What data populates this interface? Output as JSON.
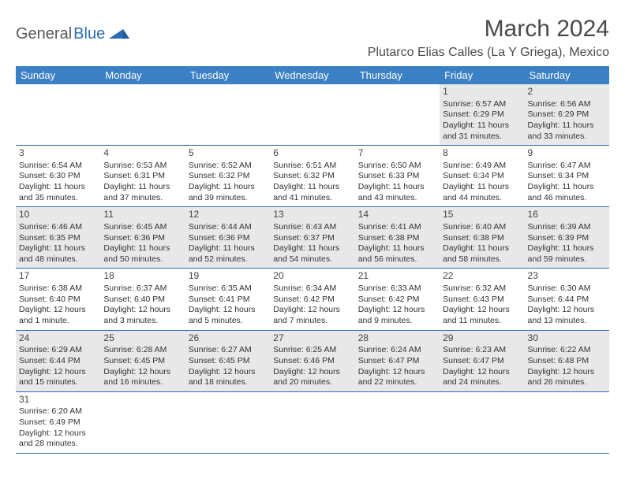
{
  "brand": {
    "part1": "General",
    "part2": "Blue",
    "accent": "#2a6db5",
    "text_color": "#5a5a5a"
  },
  "title": "March 2024",
  "location": "Plutarco Elias Calles (La Y Griega), Mexico",
  "header_bg": "#3b7fc4",
  "header_fg": "#ffffff",
  "row_border": "#2a6db5",
  "alt_row_bg": "#e8e8e8",
  "weekdays": [
    "Sunday",
    "Monday",
    "Tuesday",
    "Wednesday",
    "Thursday",
    "Friday",
    "Saturday"
  ],
  "weeks": [
    [
      null,
      null,
      null,
      null,
      null,
      {
        "d": "1",
        "sr": "Sunrise: 6:57 AM",
        "ss": "Sunset: 6:29 PM",
        "dl": "Daylight: 11 hours and 31 minutes."
      },
      {
        "d": "2",
        "sr": "Sunrise: 6:56 AM",
        "ss": "Sunset: 6:29 PM",
        "dl": "Daylight: 11 hours and 33 minutes."
      }
    ],
    [
      {
        "d": "3",
        "sr": "Sunrise: 6:54 AM",
        "ss": "Sunset: 6:30 PM",
        "dl": "Daylight: 11 hours and 35 minutes."
      },
      {
        "d": "4",
        "sr": "Sunrise: 6:53 AM",
        "ss": "Sunset: 6:31 PM",
        "dl": "Daylight: 11 hours and 37 minutes."
      },
      {
        "d": "5",
        "sr": "Sunrise: 6:52 AM",
        "ss": "Sunset: 6:32 PM",
        "dl": "Daylight: 11 hours and 39 minutes."
      },
      {
        "d": "6",
        "sr": "Sunrise: 6:51 AM",
        "ss": "Sunset: 6:32 PM",
        "dl": "Daylight: 11 hours and 41 minutes."
      },
      {
        "d": "7",
        "sr": "Sunrise: 6:50 AM",
        "ss": "Sunset: 6:33 PM",
        "dl": "Daylight: 11 hours and 43 minutes."
      },
      {
        "d": "8",
        "sr": "Sunrise: 6:49 AM",
        "ss": "Sunset: 6:34 PM",
        "dl": "Daylight: 11 hours and 44 minutes."
      },
      {
        "d": "9",
        "sr": "Sunrise: 6:47 AM",
        "ss": "Sunset: 6:34 PM",
        "dl": "Daylight: 11 hours and 46 minutes."
      }
    ],
    [
      {
        "d": "10",
        "sr": "Sunrise: 6:46 AM",
        "ss": "Sunset: 6:35 PM",
        "dl": "Daylight: 11 hours and 48 minutes."
      },
      {
        "d": "11",
        "sr": "Sunrise: 6:45 AM",
        "ss": "Sunset: 6:36 PM",
        "dl": "Daylight: 11 hours and 50 minutes."
      },
      {
        "d": "12",
        "sr": "Sunrise: 6:44 AM",
        "ss": "Sunset: 6:36 PM",
        "dl": "Daylight: 11 hours and 52 minutes."
      },
      {
        "d": "13",
        "sr": "Sunrise: 6:43 AM",
        "ss": "Sunset: 6:37 PM",
        "dl": "Daylight: 11 hours and 54 minutes."
      },
      {
        "d": "14",
        "sr": "Sunrise: 6:41 AM",
        "ss": "Sunset: 6:38 PM",
        "dl": "Daylight: 11 hours and 56 minutes."
      },
      {
        "d": "15",
        "sr": "Sunrise: 6:40 AM",
        "ss": "Sunset: 6:38 PM",
        "dl": "Daylight: 11 hours and 58 minutes."
      },
      {
        "d": "16",
        "sr": "Sunrise: 6:39 AM",
        "ss": "Sunset: 6:39 PM",
        "dl": "Daylight: 11 hours and 59 minutes."
      }
    ],
    [
      {
        "d": "17",
        "sr": "Sunrise: 6:38 AM",
        "ss": "Sunset: 6:40 PM",
        "dl": "Daylight: 12 hours and 1 minute."
      },
      {
        "d": "18",
        "sr": "Sunrise: 6:37 AM",
        "ss": "Sunset: 6:40 PM",
        "dl": "Daylight: 12 hours and 3 minutes."
      },
      {
        "d": "19",
        "sr": "Sunrise: 6:35 AM",
        "ss": "Sunset: 6:41 PM",
        "dl": "Daylight: 12 hours and 5 minutes."
      },
      {
        "d": "20",
        "sr": "Sunrise: 6:34 AM",
        "ss": "Sunset: 6:42 PM",
        "dl": "Daylight: 12 hours and 7 minutes."
      },
      {
        "d": "21",
        "sr": "Sunrise: 6:33 AM",
        "ss": "Sunset: 6:42 PM",
        "dl": "Daylight: 12 hours and 9 minutes."
      },
      {
        "d": "22",
        "sr": "Sunrise: 6:32 AM",
        "ss": "Sunset: 6:43 PM",
        "dl": "Daylight: 12 hours and 11 minutes."
      },
      {
        "d": "23",
        "sr": "Sunrise: 6:30 AM",
        "ss": "Sunset: 6:44 PM",
        "dl": "Daylight: 12 hours and 13 minutes."
      }
    ],
    [
      {
        "d": "24",
        "sr": "Sunrise: 6:29 AM",
        "ss": "Sunset: 6:44 PM",
        "dl": "Daylight: 12 hours and 15 minutes."
      },
      {
        "d": "25",
        "sr": "Sunrise: 6:28 AM",
        "ss": "Sunset: 6:45 PM",
        "dl": "Daylight: 12 hours and 16 minutes."
      },
      {
        "d": "26",
        "sr": "Sunrise: 6:27 AM",
        "ss": "Sunset: 6:45 PM",
        "dl": "Daylight: 12 hours and 18 minutes."
      },
      {
        "d": "27",
        "sr": "Sunrise: 6:25 AM",
        "ss": "Sunset: 6:46 PM",
        "dl": "Daylight: 12 hours and 20 minutes."
      },
      {
        "d": "28",
        "sr": "Sunrise: 6:24 AM",
        "ss": "Sunset: 6:47 PM",
        "dl": "Daylight: 12 hours and 22 minutes."
      },
      {
        "d": "29",
        "sr": "Sunrise: 6:23 AM",
        "ss": "Sunset: 6:47 PM",
        "dl": "Daylight: 12 hours and 24 minutes."
      },
      {
        "d": "30",
        "sr": "Sunrise: 6:22 AM",
        "ss": "Sunset: 6:48 PM",
        "dl": "Daylight: 12 hours and 26 minutes."
      }
    ],
    [
      {
        "d": "31",
        "sr": "Sunrise: 6:20 AM",
        "ss": "Sunset: 6:49 PM",
        "dl": "Daylight: 12 hours and 28 minutes."
      },
      null,
      null,
      null,
      null,
      null,
      null
    ]
  ]
}
